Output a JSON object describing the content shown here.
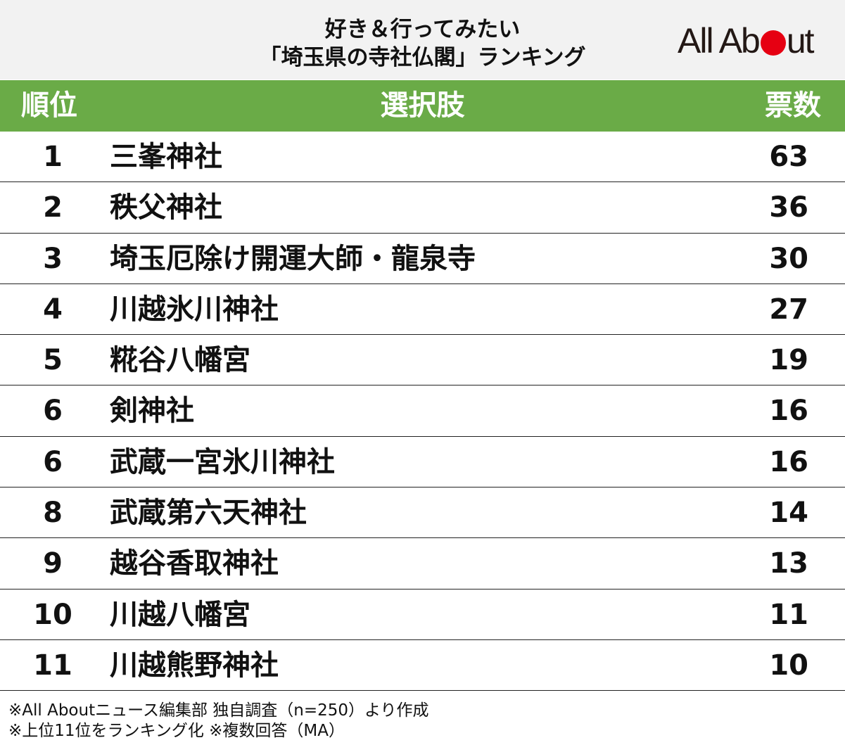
{
  "header": {
    "title_line1": "好き＆行ってみたい",
    "title_line2": "「埼玉県の寺社仏閣」ランキング",
    "logo_prefix": "All Ab",
    "logo_suffix": "ut",
    "logo_accent_color": "#e60012"
  },
  "columns": {
    "rank": "順位",
    "choice": "選択肢",
    "votes": "票数",
    "header_color": "#6aab47"
  },
  "rows": [
    {
      "rank": "1",
      "name": "三峯神社",
      "votes": "63"
    },
    {
      "rank": "2",
      "name": "秩父神社",
      "votes": "36"
    },
    {
      "rank": "3",
      "name": "埼玉厄除け開運大師・龍泉寺",
      "votes": "30"
    },
    {
      "rank": "4",
      "name": "川越氷川神社",
      "votes": "27"
    },
    {
      "rank": "5",
      "name": "糀谷八幡宮",
      "votes": "19"
    },
    {
      "rank": "6",
      "name": "剣神社",
      "votes": "16"
    },
    {
      "rank": "6",
      "name": "武蔵一宮氷川神社",
      "votes": "16"
    },
    {
      "rank": "8",
      "name": "武蔵第六天神社",
      "votes": "14"
    },
    {
      "rank": "9",
      "name": "越谷香取神社",
      "votes": "13"
    },
    {
      "rank": "10",
      "name": "川越八幡宮",
      "votes": "11"
    },
    {
      "rank": "11",
      "name": "川越熊野神社",
      "votes": "10"
    }
  ],
  "footer": {
    "note1": "※All Aboutニュース編集部 独自調査（n=250）より作成",
    "note2": "※上位11位をランキング化 ※複数回答（MA）"
  }
}
